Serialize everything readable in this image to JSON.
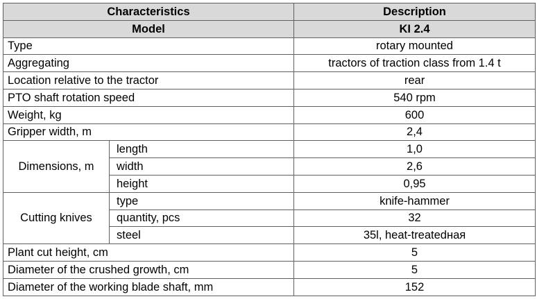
{
  "table": {
    "header": {
      "col1": "Characteristics",
      "col2": "Description"
    },
    "model_row": {
      "label": "Model",
      "value": "KI 2.4"
    },
    "rows": [
      {
        "label": "Type",
        "value": "rotary mounted"
      },
      {
        "label": "Aggregating",
        "value": "tractors of traction class from 1.4 t"
      },
      {
        "label": "Location relative to the tractor",
        "value": "rear"
      },
      {
        "label": "PTO shaft rotation speed",
        "value": "540 rpm"
      },
      {
        "label": "Weight, kg",
        "value": "600"
      },
      {
        "label": "Gripper width, m",
        "value": "2,4"
      }
    ],
    "dimensions": {
      "label": "Dimensions, m",
      "items": [
        {
          "label": "length",
          "value": "1,0"
        },
        {
          "label": "width",
          "value": "2,6"
        },
        {
          "label": "height",
          "value": "0,95"
        }
      ]
    },
    "cutting_knives": {
      "label": "Cutting knives",
      "items": [
        {
          "label": "type",
          "value": "knife-hammer"
        },
        {
          "label": "quantity, pcs",
          "value": "32"
        },
        {
          "label": "steel",
          "value": "35l, heat-treatedная"
        }
      ]
    },
    "rows_after": [
      {
        "label": "Plant cut height, cm",
        "value": "5"
      },
      {
        "label": "Diameter of the crushed growth, cm",
        "value": "5"
      },
      {
        "label": "Diameter of the working blade shaft, mm",
        "value": "152"
      }
    ]
  },
  "colors": {
    "header_background": "#d9d9d9",
    "border": "#5f5f5f",
    "text": "#000000"
  }
}
